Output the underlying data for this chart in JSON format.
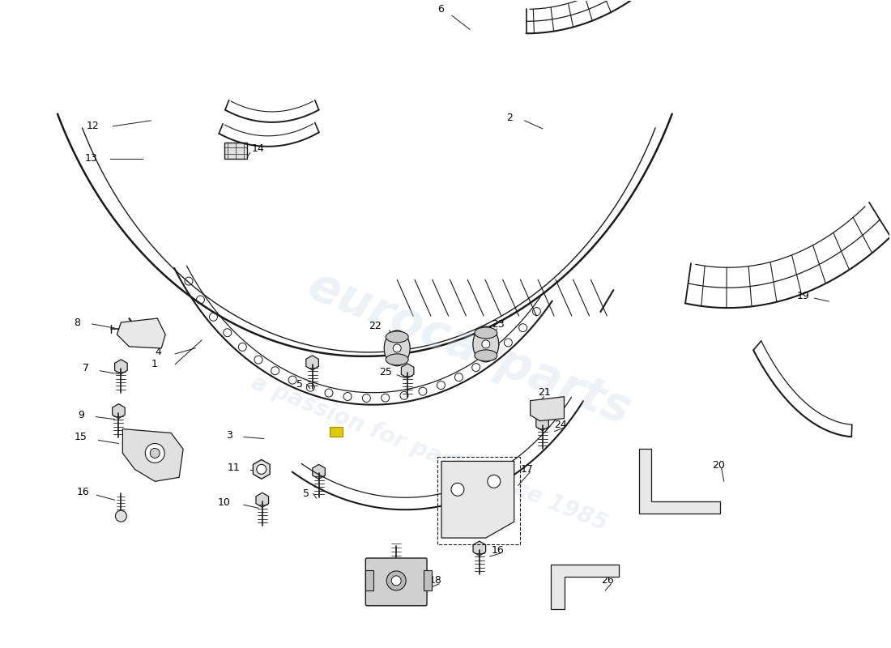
{
  "background_color": "#ffffff",
  "line_color": "#1a1a1a",
  "fig_width": 11.0,
  "fig_height": 8.0,
  "dpi": 100
}
